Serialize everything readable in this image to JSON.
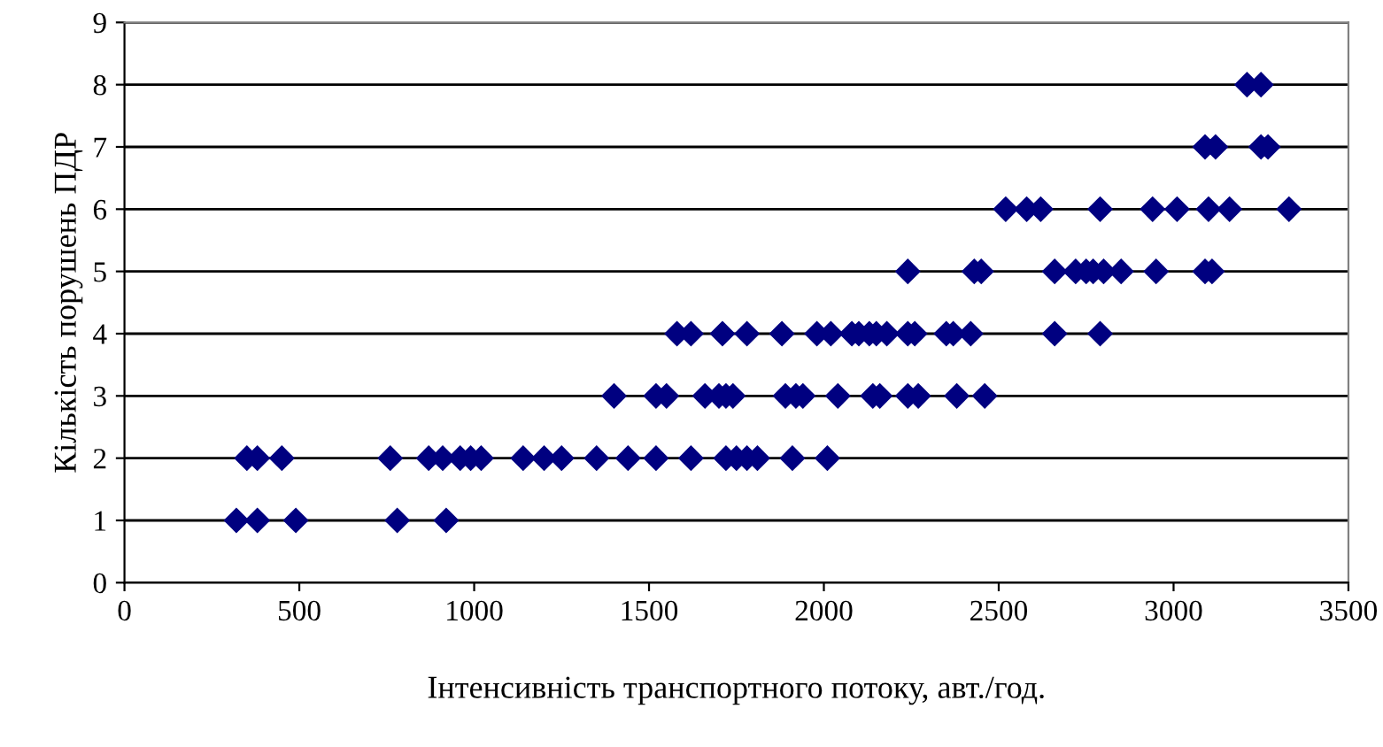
{
  "chart_data": {
    "type": "scatter",
    "xlabel": "Інтенсивність транспортного потоку, авт./год.",
    "ylabel": "Кількість порушень ПДР",
    "series": [
      {
        "color": "#000080",
        "x": [
          320,
          380,
          490,
          780,
          920,
          350,
          380,
          450,
          760,
          870,
          910,
          960,
          990,
          1020,
          1140,
          1200,
          1250,
          1350,
          1440,
          1520,
          1620,
          1720,
          1750,
          1780,
          1810,
          1910,
          2010,
          1400,
          1520,
          1550,
          1660,
          1700,
          1720,
          1740,
          1890,
          1920,
          1940,
          2040,
          2140,
          2160,
          2240,
          2270,
          2380,
          2460,
          1580,
          1620,
          1710,
          1780,
          1880,
          1980,
          2020,
          2080,
          2100,
          2130,
          2150,
          2180,
          2240,
          2260,
          2350,
          2370,
          2420,
          2660,
          2790,
          2240,
          2430,
          2450,
          2660,
          2720,
          2750,
          2770,
          2800,
          2850,
          2950,
          3090,
          3110,
          2520,
          2580,
          2620,
          2790,
          2940,
          3010,
          3100,
          3160,
          3330,
          3090,
          3120,
          3250,
          3270,
          3210,
          3250
        ],
        "values": [
          1,
          1,
          1,
          1,
          1,
          2,
          2,
          2,
          2,
          2,
          2,
          2,
          2,
          2,
          2,
          2,
          2,
          2,
          2,
          2,
          2,
          2,
          2,
          2,
          2,
          2,
          2,
          3,
          3,
          3,
          3,
          3,
          3,
          3,
          3,
          3,
          3,
          3,
          3,
          3,
          3,
          3,
          3,
          3,
          4,
          4,
          4,
          4,
          4,
          4,
          4,
          4,
          4,
          4,
          4,
          4,
          4,
          4,
          4,
          4,
          4,
          4,
          4,
          5,
          5,
          5,
          5,
          5,
          5,
          5,
          5,
          5,
          5,
          5,
          5,
          6,
          6,
          6,
          6,
          6,
          6,
          6,
          6,
          6,
          7,
          7,
          7,
          7,
          8,
          8
        ]
      }
    ],
    "marker": "diamond",
    "grid": "y",
    "xlim": [
      0,
      3500
    ],
    "xticks": [
      0,
      500,
      1000,
      1500,
      2000,
      2500,
      3000,
      3500
    ],
    "ylim": [
      0,
      9
    ],
    "yticks": [
      0,
      1,
      2,
      3,
      4,
      5,
      6,
      7,
      8,
      9
    ]
  }
}
